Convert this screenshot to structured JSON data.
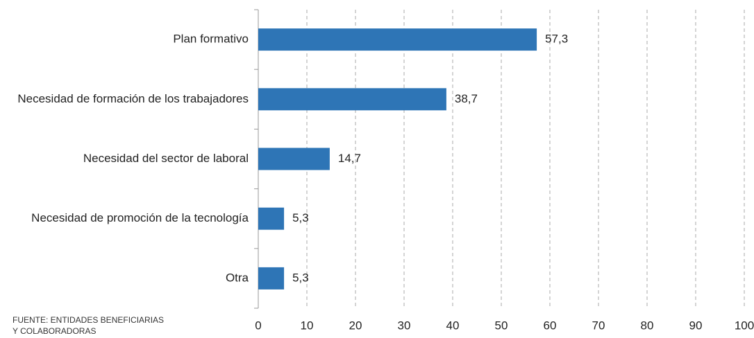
{
  "chart_data": {
    "type": "bar",
    "orientation": "horizontal",
    "categories": [
      "Plan formativo",
      "Necesidad de formación de los trabajadores",
      "Necesidad del sector de laboral",
      "Necesidad de promoción de la tecnología",
      "Otra"
    ],
    "values": [
      57.3,
      38.7,
      14.7,
      5.3,
      5.3
    ],
    "value_labels": [
      "57,3",
      "38,7",
      "14,7",
      "5,3",
      "5,3"
    ],
    "color": "#2e75b6",
    "xlim": [
      0,
      100
    ],
    "xticks": [
      0,
      10,
      20,
      30,
      40,
      50,
      60,
      70,
      80,
      90,
      100
    ],
    "grid": true,
    "source": [
      "FUENTE: ENTIDADES BENEFICIARIAS",
      "Y COLABORADORAS"
    ]
  }
}
